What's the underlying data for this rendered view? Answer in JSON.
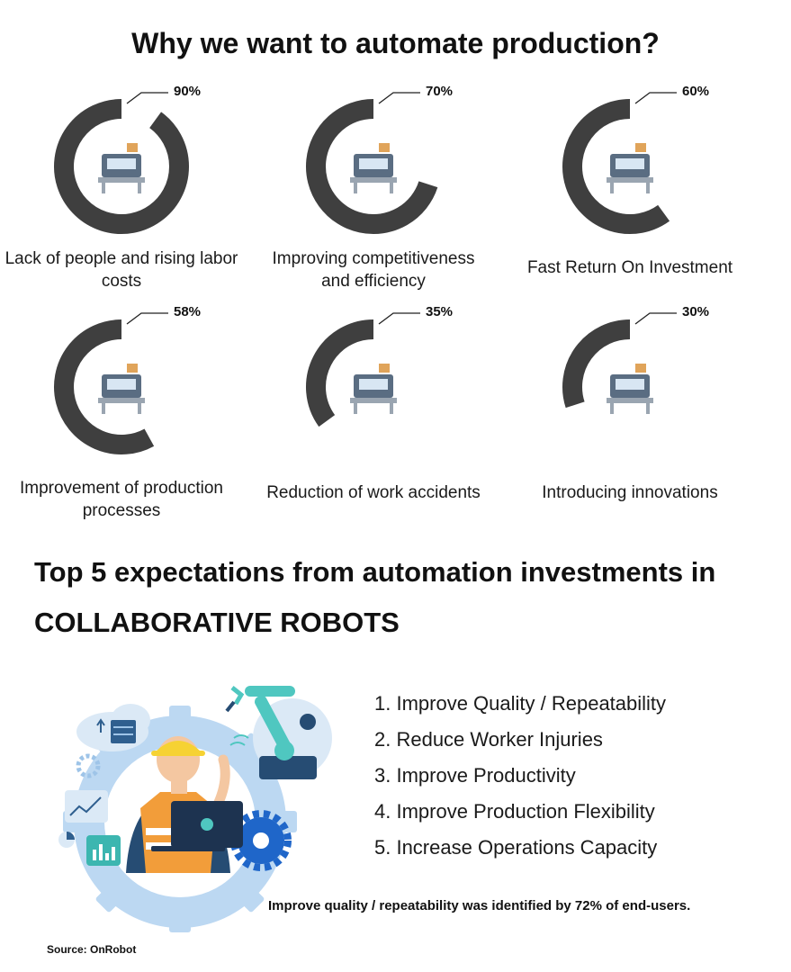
{
  "title": "Why we want to automate production?",
  "chart_data": {
    "type": "donut",
    "title": "Why we want to automate production?",
    "items": [
      {
        "label": "Lack of people and rising labor costs",
        "value": 90,
        "display": "90%",
        "icon": "robot-arm-icon"
      },
      {
        "label": "Improving competitiveness and efficiency",
        "value": 70,
        "display": "70%",
        "icon": "control-panel-icon"
      },
      {
        "label": "Fast Return On Investment",
        "value": 60,
        "display": "60%",
        "icon": "conveyor-belt-icon"
      },
      {
        "label": "Improvement of production processes",
        "value": 58,
        "display": "58%",
        "icon": "production-machine-icon"
      },
      {
        "label": "Reduction of work accidents",
        "value": 35,
        "display": "35%",
        "icon": "industrial-robot-icon"
      },
      {
        "label": "Introducing innovations",
        "value": 30,
        "display": "30%",
        "icon": "computer-monitor-icon"
      }
    ],
    "colors": {
      "filled": "#3f3f3f"
    }
  },
  "section2": {
    "heading": "Top 5 expectations from automation investments in COLLABORATIVE ROBOTS",
    "items": [
      "1. Improve Quality / Repeatability",
      "2. Reduce Worker Injuries",
      "3. Improve Productivity",
      "4. Improve Production Flexibility",
      "5. Increase Operations Capacity"
    ],
    "note": "Improve quality / repeatability was identified by 72% of end-users.",
    "illustration": "engineer-with-robot-illustration"
  },
  "source": "Source: OnRobot"
}
